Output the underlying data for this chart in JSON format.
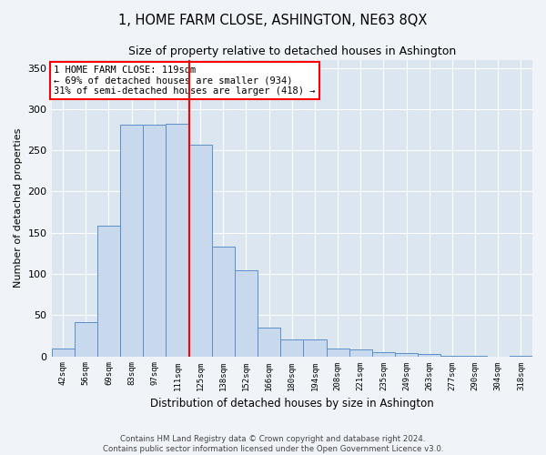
{
  "title": "1, HOME FARM CLOSE, ASHINGTON, NE63 8QX",
  "subtitle": "Size of property relative to detached houses in Ashington",
  "xlabel": "Distribution of detached houses by size in Ashington",
  "ylabel": "Number of detached properties",
  "bar_labels": [
    "42sqm",
    "56sqm",
    "69sqm",
    "83sqm",
    "97sqm",
    "111sqm",
    "125sqm",
    "138sqm",
    "152sqm",
    "166sqm",
    "180sqm",
    "194sqm",
    "208sqm",
    "221sqm",
    "235sqm",
    "249sqm",
    "263sqm",
    "277sqm",
    "290sqm",
    "304sqm",
    "318sqm"
  ],
  "bar_values": [
    10,
    41,
    158,
    281,
    281,
    282,
    257,
    133,
    104,
    35,
    20,
    20,
    9,
    8,
    5,
    4,
    3,
    1,
    1,
    0,
    1
  ],
  "bar_color": "#c9d9ed",
  "bar_edge_color": "#5b8fc9",
  "annotation_text_line1": "1 HOME FARM CLOSE: 119sqm",
  "annotation_text_line2": "← 69% of detached houses are smaller (934)",
  "annotation_text_line3": "31% of semi-detached houses are larger (418) →",
  "annotation_box_color": "white",
  "annotation_box_edge_color": "red",
  "vline_color": "red",
  "vline_x_index": 5.5,
  "footer_line1": "Contains HM Land Registry data © Crown copyright and database right 2024.",
  "footer_line2": "Contains public sector information licensed under the Open Government Licence v3.0.",
  "ylim": [
    0,
    360
  ],
  "fig_background": "#f0f4f8",
  "plot_background": "#dce6f0"
}
